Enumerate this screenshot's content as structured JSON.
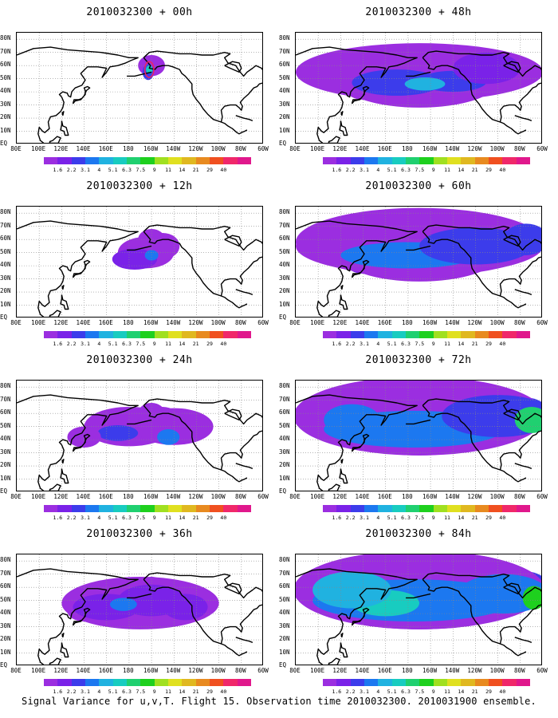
{
  "caption": "Signal Variance for u,v,T. Flight 15. Observation time 2010032300. 2010031900 ensemble.",
  "panels": [
    {
      "title": "2010032300 + 00h",
      "level": 0
    },
    {
      "title": "2010032300 + 48h",
      "level": 4
    },
    {
      "title": "2010032300 + 12h",
      "level": 1
    },
    {
      "title": "2010032300 + 60h",
      "level": 5
    },
    {
      "title": "2010032300 + 24h",
      "level": 2
    },
    {
      "title": "2010032300 + 72h",
      "level": 6
    },
    {
      "title": "2010032300 + 36h",
      "level": 3
    },
    {
      "title": "2010032300 + 84h",
      "level": 7
    }
  ],
  "lat_labels": [
    "80N",
    "70N",
    "60N",
    "50N",
    "40N",
    "30N",
    "20N",
    "10N",
    "EQ"
  ],
  "lon_labels": [
    "80E",
    "100E",
    "120E",
    "140E",
    "160E",
    "180",
    "160W",
    "140W",
    "120W",
    "100W",
    "80W",
    "60W"
  ],
  "colorbar": {
    "labels": [
      "1.6",
      "2.2",
      "3.1",
      "4",
      "5.1",
      "6.3",
      "7.5",
      "9",
      "11",
      "14",
      "21",
      "29",
      "40"
    ],
    "colors": [
      "#9b2ee0",
      "#7a22e8",
      "#3c3ceb",
      "#1c78f0",
      "#20b2e0",
      "#18ccc0",
      "#20d070",
      "#1ed01e",
      "#a0e020",
      "#e0e020",
      "#e0b820",
      "#e88a20",
      "#f05020",
      "#f0286a",
      "#e0188c"
    ]
  }
}
